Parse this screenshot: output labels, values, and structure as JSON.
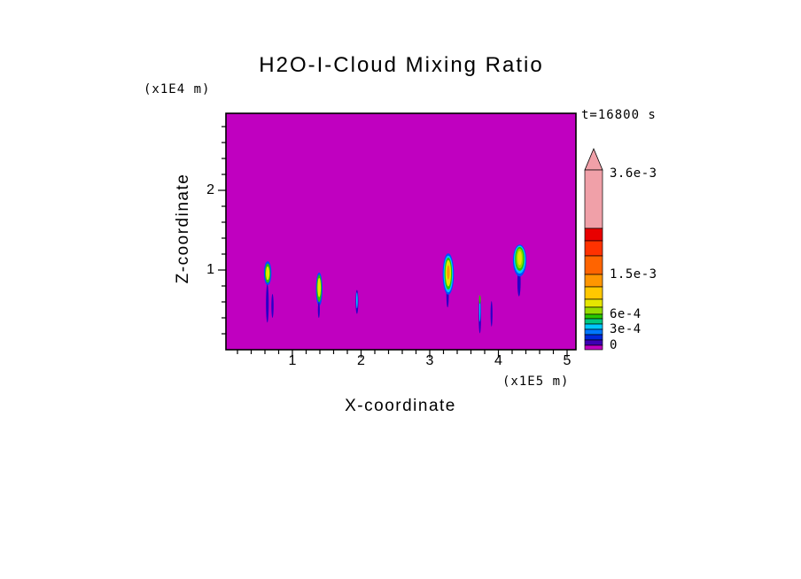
{
  "chart_data": {
    "type": "heatmap",
    "title": "H2O-I-Cloud Mixing Ratio",
    "time_label": "t=16800 s",
    "xlabel": "X-coordinate",
    "x_units": "(x1E5 m)",
    "ylabel": "Z-coordinate",
    "y_units": "(x1E4 m)",
    "xlim": [
      0,
      5.13
    ],
    "ylim": [
      0,
      2.97
    ],
    "x_ticks": [
      1,
      2,
      3,
      4,
      5
    ],
    "y_ticks": [
      1,
      2
    ],
    "x_minor_step": 0.2,
    "y_minor_step": 0.2,
    "grid": false,
    "legend_position": "right",
    "background_color": "#C000C0",
    "colorbar": {
      "arrow_color": "#F0A0A8",
      "segments": [
        {
          "color": "#F0A0A8",
          "height": 66
        },
        {
          "color": "#E80000",
          "height": 14
        },
        {
          "color": "#FF3200",
          "height": 17
        },
        {
          "color": "#FF6400",
          "height": 21
        },
        {
          "color": "#FF9600",
          "height": 14
        },
        {
          "color": "#FFC800",
          "height": 14
        },
        {
          "color": "#E6E600",
          "height": 9
        },
        {
          "color": "#96DC00",
          "height": 8
        },
        {
          "color": "#28C800",
          "height": 5
        },
        {
          "color": "#00C882",
          "height": 6
        },
        {
          "color": "#00C8FF",
          "height": 6
        },
        {
          "color": "#0078FF",
          "height": 6
        },
        {
          "color": "#0028DC",
          "height": 6
        },
        {
          "color": "#3C00B4",
          "height": 6
        },
        {
          "color": "#C000C0",
          "height": 5
        }
      ],
      "ticks": [
        {
          "label": "3.6e-3",
          "offset": 199
        },
        {
          "label": "1.5e-3",
          "offset": 85
        },
        {
          "label": "6e-4",
          "offset": 40
        },
        {
          "label": "3e-4",
          "offset": 23
        },
        {
          "label": "0",
          "offset": 5
        }
      ]
    },
    "plumes": [
      {
        "name": "plume-1",
        "parts": [
          {
            "color": "#0050FF",
            "x": 0.64,
            "z": 0.96,
            "rx": 0.055,
            "rz": 0.15
          },
          {
            "color": "#28C800",
            "x": 0.64,
            "z": 0.96,
            "rx": 0.04,
            "rz": 0.12
          },
          {
            "color": "#E6E600",
            "x": 0.64,
            "z": 0.96,
            "rx": 0.026,
            "rz": 0.085
          },
          {
            "color": "#2800C8",
            "x": 0.635,
            "z": 0.58,
            "rx": 0.02,
            "rz": 0.24
          }
        ]
      },
      {
        "name": "plume-1b",
        "parts": [
          {
            "color": "#2800C8",
            "x": 0.71,
            "z": 0.55,
            "rx": 0.016,
            "rz": 0.15
          }
        ]
      },
      {
        "name": "plume-2",
        "parts": [
          {
            "color": "#0050FF",
            "x": 1.39,
            "z": 0.76,
            "rx": 0.048,
            "rz": 0.21
          },
          {
            "color": "#28C800",
            "x": 1.39,
            "z": 0.77,
            "rx": 0.036,
            "rz": 0.17
          },
          {
            "color": "#E6E600",
            "x": 1.39,
            "z": 0.78,
            "rx": 0.024,
            "rz": 0.12
          },
          {
            "color": "#2800C8",
            "x": 1.385,
            "z": 0.5,
            "rx": 0.014,
            "rz": 0.1
          }
        ]
      },
      {
        "name": "plume-3",
        "parts": [
          {
            "color": "#2800C8",
            "x": 1.94,
            "z": 0.6,
            "rx": 0.02,
            "rz": 0.15
          },
          {
            "color": "#00C8FF",
            "x": 1.94,
            "z": 0.62,
            "rx": 0.011,
            "rz": 0.1
          }
        ]
      },
      {
        "name": "plume-4",
        "parts": [
          {
            "color": "#2800C8",
            "x": 3.26,
            "z": 0.7,
            "rx": 0.018,
            "rz": 0.17
          },
          {
            "color": "#0050FF",
            "x": 3.27,
            "z": 0.95,
            "rx": 0.082,
            "rz": 0.26
          },
          {
            "color": "#00C8FF",
            "x": 3.27,
            "z": 0.95,
            "rx": 0.068,
            "rz": 0.23
          },
          {
            "color": "#28C800",
            "x": 3.27,
            "z": 0.955,
            "rx": 0.055,
            "rz": 0.2
          },
          {
            "color": "#E6E600",
            "x": 3.27,
            "z": 0.96,
            "rx": 0.04,
            "rz": 0.165
          },
          {
            "color": "#FF9600",
            "x": 3.27,
            "z": 0.97,
            "rx": 0.021,
            "rz": 0.09
          }
        ]
      },
      {
        "name": "plume-5",
        "parts": [
          {
            "color": "#2800C8",
            "x": 3.73,
            "z": 0.44,
            "rx": 0.018,
            "rz": 0.235
          },
          {
            "color": "#00C8FF",
            "x": 3.73,
            "z": 0.5,
            "rx": 0.01,
            "rz": 0.15
          },
          {
            "color": "#28C800",
            "x": 3.73,
            "z": 0.63,
            "rx": 0.012,
            "rz": 0.055
          }
        ]
      },
      {
        "name": "plume-6",
        "parts": [
          {
            "color": "#2800C8",
            "x": 3.9,
            "z": 0.45,
            "rx": 0.014,
            "rz": 0.16
          }
        ]
      },
      {
        "name": "plume-7",
        "parts": [
          {
            "color": "#2800C8",
            "x": 4.3,
            "z": 0.85,
            "rx": 0.024,
            "rz": 0.18
          },
          {
            "color": "#0050FF",
            "x": 4.31,
            "z": 1.12,
            "rx": 0.098,
            "rz": 0.2
          },
          {
            "color": "#00C8FF",
            "x": 4.31,
            "z": 1.13,
            "rx": 0.084,
            "rz": 0.175
          },
          {
            "color": "#28C800",
            "x": 4.31,
            "z": 1.14,
            "rx": 0.068,
            "rz": 0.15
          },
          {
            "color": "#96DC00",
            "x": 4.31,
            "z": 1.145,
            "rx": 0.05,
            "rz": 0.125
          },
          {
            "color": "#E6E600",
            "x": 4.31,
            "z": 1.15,
            "rx": 0.03,
            "rz": 0.09
          }
        ]
      }
    ]
  }
}
